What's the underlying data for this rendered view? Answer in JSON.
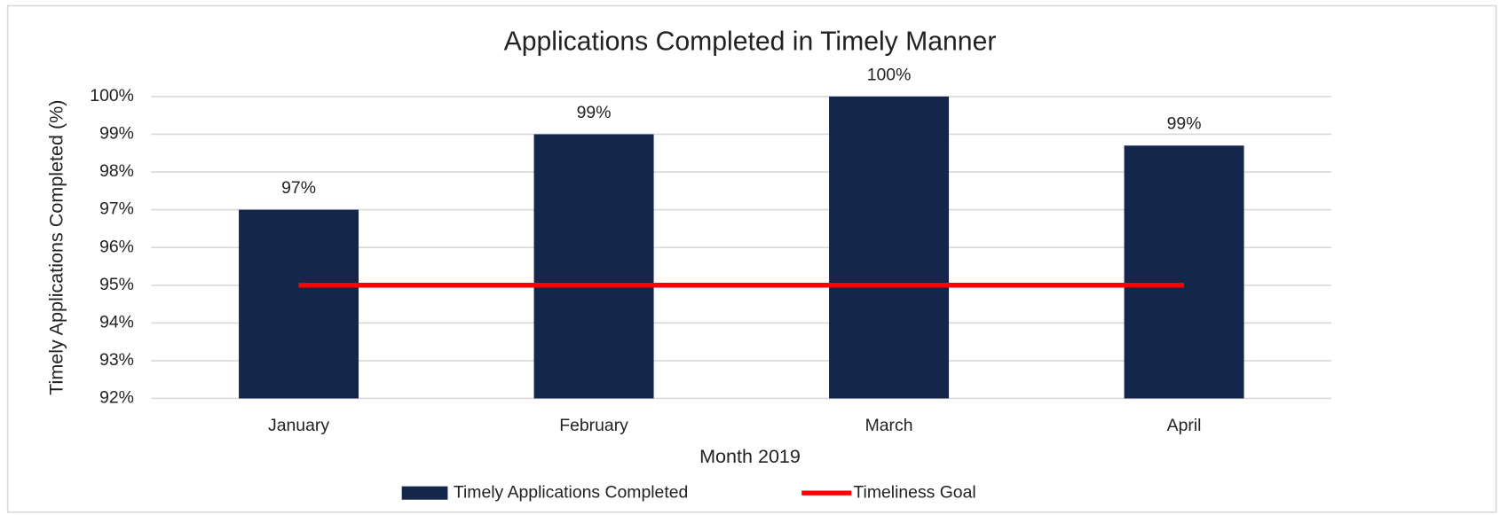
{
  "chart_data": {
    "type": "bar",
    "title": "Applications Completed in Timely Manner",
    "x_label": "Month 2019",
    "y_label": "Timely Applications Completed (%)",
    "categories": [
      "January",
      "February",
      "March",
      "April"
    ],
    "series": [
      {
        "name": "Timely Applications Completed",
        "color": "#14264a",
        "values": [
          97,
          99,
          100,
          98.7
        ],
        "value_labels": [
          "97%",
          "99%",
          "100%",
          "99%"
        ]
      },
      {
        "name": "Timeliness Goal",
        "type": "line",
        "color": "#ff0000",
        "values": [
          95,
          95,
          95,
          95
        ]
      }
    ],
    "ylim": [
      92,
      100
    ],
    "yticks": [
      {
        "value": 92,
        "label": "92%"
      },
      {
        "value": 93,
        "label": "93%"
      },
      {
        "value": 94,
        "label": "94%"
      },
      {
        "value": 95,
        "label": "95%"
      },
      {
        "value": 96,
        "label": "96%"
      },
      {
        "value": 97,
        "label": "97%"
      },
      {
        "value": 98,
        "label": "98%"
      },
      {
        "value": 99,
        "label": "99%"
      },
      {
        "value": 100,
        "label": "100%"
      }
    ],
    "grid": true,
    "legend": "bottom"
  }
}
